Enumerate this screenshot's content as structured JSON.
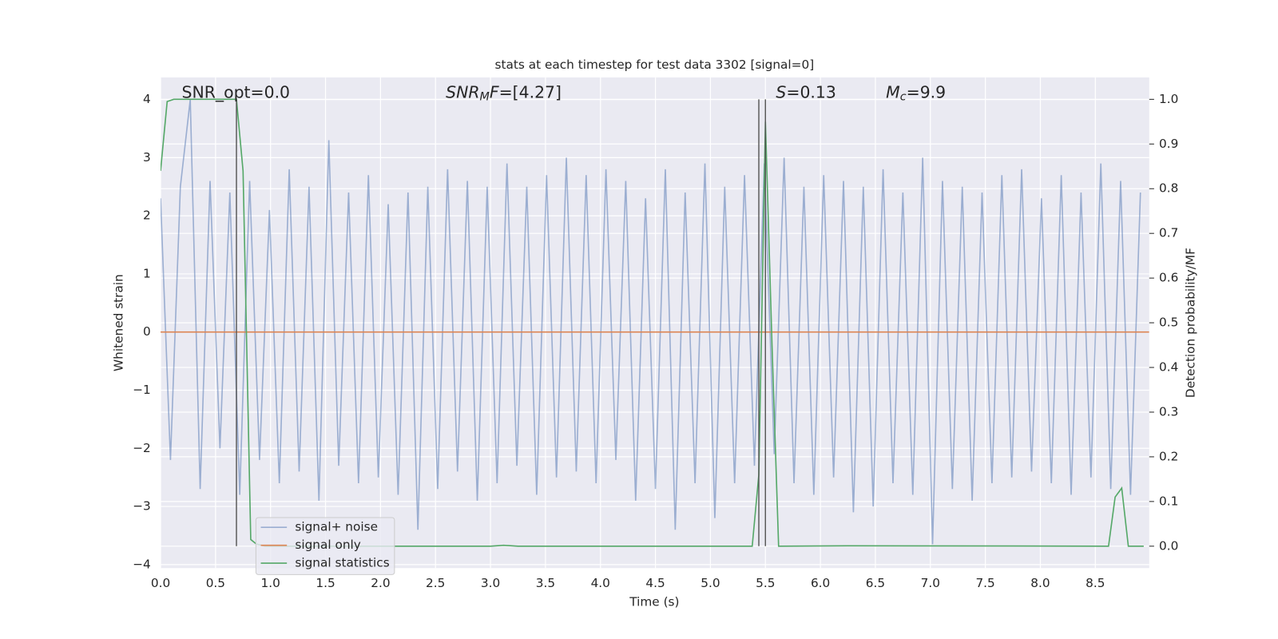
{
  "chart_data": {
    "type": "line",
    "title": "stats at each timestep for test data 3302 [signal=0]",
    "xlabel": "Time (s)",
    "ylabel": "Whitened strain",
    "y2label": "Detection probability/MF",
    "xlim": [
      0,
      8.99
    ],
    "ylim": [
      -4.06,
      4.38
    ],
    "y2lim": [
      -0.049,
      1.049
    ],
    "xticks": [
      {
        "value": 0,
        "label": "0.0"
      },
      {
        "value": 0.5,
        "label": "0.5"
      },
      {
        "value": 1,
        "label": "1.0"
      },
      {
        "value": 1.5,
        "label": "1.5"
      },
      {
        "value": 2,
        "label": "2.0"
      },
      {
        "value": 2.5,
        "label": "2.5"
      },
      {
        "value": 3,
        "label": "3.0"
      },
      {
        "value": 3.5,
        "label": "3.5"
      },
      {
        "value": 4,
        "label": "4.0"
      },
      {
        "value": 4.5,
        "label": "4.5"
      },
      {
        "value": 5,
        "label": "5.0"
      },
      {
        "value": 5.5,
        "label": "5.5"
      },
      {
        "value": 6,
        "label": "6.0"
      },
      {
        "value": 6.5,
        "label": "6.5"
      },
      {
        "value": 7,
        "label": "7.0"
      },
      {
        "value": 7.5,
        "label": "7.5"
      },
      {
        "value": 8,
        "label": "8.0"
      },
      {
        "value": 8.5,
        "label": "8.5"
      }
    ],
    "yticks": [
      {
        "value": -4,
        "label": "−4"
      },
      {
        "value": -3,
        "label": "−3"
      },
      {
        "value": -2,
        "label": "−2"
      },
      {
        "value": -1,
        "label": "−1"
      },
      0,
      1,
      2,
      3,
      4
    ],
    "y2ticks": [
      {
        "value": 0,
        "label": "0.0"
      },
      {
        "value": 0.1,
        "label": "0.1"
      },
      {
        "value": 0.2,
        "label": "0.2"
      },
      {
        "value": 0.3,
        "label": "0.3"
      },
      {
        "value": 0.4,
        "label": "0.4"
      },
      {
        "value": 0.5,
        "label": "0.5"
      },
      {
        "value": 0.6,
        "label": "0.6"
      },
      {
        "value": 0.7,
        "label": "0.7"
      },
      {
        "value": 0.8,
        "label": "0.8"
      },
      {
        "value": 0.9,
        "label": "0.9"
      },
      {
        "value": 1,
        "label": "1.0"
      }
    ],
    "grid": true,
    "legend": "lower left",
    "annotations": [
      [
        {
          "t": "SNR_opt=0.0"
        }
      ],
      [
        {
          "t": "SNR",
          "style": "italic"
        },
        {
          "t": "M",
          "style": "sub"
        },
        {
          "t": "F",
          "style": "italic"
        },
        {
          "t": "=[4.27]"
        }
      ],
      [
        {
          "t": "S",
          "style": "italic"
        },
        {
          "t": "=0.13"
        }
      ],
      [
        {
          "t": "M",
          "style": "italic"
        },
        {
          "t": "c",
          "style": "sub"
        },
        {
          "t": "=9.9"
        }
      ]
    ],
    "vlines": {
      "x": [
        0.69,
        5.44,
        5.5
      ],
      "y2span": [
        0,
        1
      ],
      "color": "#555555"
    },
    "series": [
      {
        "name": "signal+ noise",
        "color": "#4c72b0",
        "opacity": 0.5,
        "x": [
          0,
          0.09,
          0.18,
          0.27,
          0.36,
          0.45,
          0.54,
          0.63,
          0.72,
          0.81,
          0.9,
          0.99,
          1.08,
          1.17,
          1.26,
          1.35,
          1.44,
          1.53,
          1.62,
          1.71,
          1.8,
          1.89,
          1.98,
          2.07,
          2.16,
          2.25,
          2.34,
          2.43,
          2.52,
          2.61,
          2.7,
          2.79,
          2.88,
          2.97,
          3.06,
          3.15,
          3.24,
          3.33,
          3.42,
          3.51,
          3.6,
          3.69,
          3.78,
          3.87,
          3.96,
          4.05,
          4.14,
          4.23,
          4.32,
          4.41,
          4.5,
          4.59,
          4.68,
          4.77,
          4.86,
          4.95,
          5.04,
          5.13,
          5.22,
          5.31,
          5.4,
          5.49,
          5.58,
          5.67,
          5.76,
          5.85,
          5.94,
          6.03,
          6.12,
          6.21,
          6.3,
          6.39,
          6.48,
          6.57,
          6.66,
          6.75,
          6.84,
          6.93,
          7.02,
          7.11,
          7.2,
          7.29,
          7.38,
          7.47,
          7.56,
          7.65,
          7.74,
          7.83,
          7.92,
          8.01,
          8.1,
          8.19,
          8.28,
          8.37,
          8.46,
          8.55,
          8.64,
          8.73,
          8.82,
          8.91
        ],
        "values": [
          2.3,
          -2.2,
          2.5,
          4.0,
          -2.7,
          2.6,
          -2.0,
          2.4,
          -2.8,
          2.6,
          -2.2,
          2.1,
          -2.6,
          2.8,
          -2.4,
          2.5,
          -2.9,
          3.3,
          -2.3,
          2.4,
          -2.6,
          2.7,
          -2.5,
          2.2,
          -2.8,
          2.4,
          -3.4,
          2.5,
          -2.7,
          2.8,
          -2.4,
          2.6,
          -2.9,
          2.5,
          -2.6,
          2.9,
          -2.3,
          2.5,
          -2.8,
          2.7,
          -2.5,
          3.0,
          -2.4,
          2.7,
          -2.6,
          2.8,
          -2.2,
          2.6,
          -2.9,
          2.3,
          -2.7,
          2.8,
          -3.4,
          2.4,
          -2.6,
          2.9,
          -3.2,
          2.5,
          -2.6,
          2.7,
          -2.3,
          2.9,
          -2.1,
          3.0,
          -2.6,
          2.5,
          -2.8,
          2.7,
          -2.5,
          2.6,
          -3.1,
          2.5,
          -3.0,
          2.8,
          -2.6,
          2.4,
          -2.8,
          3.0,
          -3.65,
          2.6,
          -2.7,
          2.5,
          -2.9,
          2.4,
          -2.6,
          2.7,
          -2.5,
          2.8,
          -2.4,
          2.3,
          -2.6,
          2.7,
          -2.8,
          2.4,
          -2.5,
          2.9,
          -2.7,
          2.6,
          -2.8,
          2.4
        ]
      },
      {
        "name": "signal only",
        "color": "#dd8452",
        "x": [
          0,
          8.99
        ],
        "values": [
          0,
          0
        ]
      },
      {
        "name": "signal statistics",
        "color": "#55a868",
        "axis": "y2",
        "x": [
          0,
          0.06,
          0.12,
          0.25,
          0.5,
          0.69,
          0.75,
          0.82,
          0.87,
          0.95,
          1.5,
          3.0,
          3.12,
          3.25,
          5.38,
          5.44,
          5.5,
          5.56,
          5.62,
          6.25,
          8.62,
          8.68,
          8.74,
          8.8,
          8.94
        ],
        "values": [
          0.84,
          0.995,
          1.0,
          1.0,
          1.0,
          1.0,
          0.84,
          0.015,
          0.005,
          0.0,
          0.0,
          0.0,
          0.002,
          0.0,
          0.0,
          0.16,
          0.95,
          0.45,
          0.0,
          0.001,
          0.0,
          0.11,
          0.13,
          0.0,
          0.0
        ]
      }
    ]
  }
}
